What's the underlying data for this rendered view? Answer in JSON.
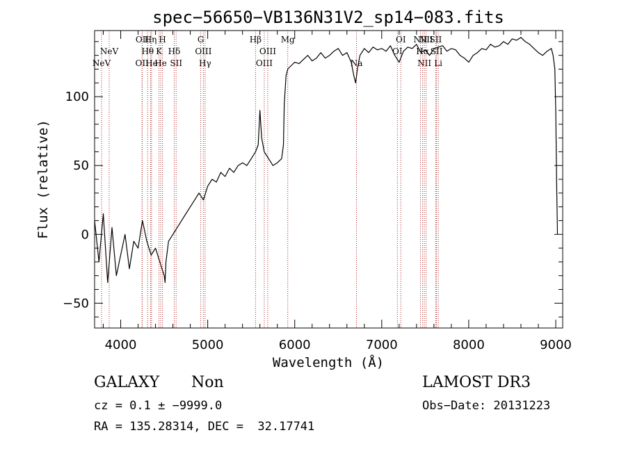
{
  "chart_data": {
    "type": "line",
    "title": "spec−56650−VB136N31V2_sp14−083.fits",
    "xlabel": "Wavelength (Å)",
    "ylabel": "Flux (relative)",
    "xlim": [
      3700,
      9080
    ],
    "ylim": [
      -68,
      148
    ],
    "x_ticks": [
      4000,
      5000,
      6000,
      7000,
      8000,
      9000
    ],
    "y_ticks": [
      -50,
      0,
      50,
      100
    ],
    "y_tick_labels": [
      "−50",
      "0",
      "50",
      "100"
    ],
    "series": [
      {
        "name": "spectrum",
        "color": "#000000",
        "x": [
          3700,
          3750,
          3800,
          3850,
          3900,
          3950,
          4000,
          4050,
          4100,
          4150,
          4200,
          4250,
          4300,
          4350,
          4400,
          4450,
          4500,
          4510,
          4520,
          4550,
          4600,
          4650,
          4700,
          4750,
          4800,
          4850,
          4900,
          4950,
          5000,
          5050,
          5100,
          5150,
          5200,
          5250,
          5300,
          5350,
          5400,
          5450,
          5500,
          5550,
          5580,
          5600,
          5620,
          5650,
          5700,
          5750,
          5800,
          5850,
          5870,
          5880,
          5890,
          5900,
          5920,
          5950,
          6000,
          6050,
          6100,
          6150,
          6200,
          6250,
          6300,
          6350,
          6400,
          6450,
          6500,
          6550,
          6600,
          6650,
          6680,
          6700,
          6720,
          6750,
          6800,
          6850,
          6900,
          6950,
          7000,
          7050,
          7100,
          7150,
          7200,
          7250,
          7300,
          7350,
          7400,
          7450,
          7500,
          7550,
          7600,
          7650,
          7700,
          7750,
          7800,
          7850,
          7900,
          7950,
          8000,
          8050,
          8100,
          8150,
          8200,
          8250,
          8300,
          8350,
          8400,
          8450,
          8500,
          8550,
          8600,
          8650,
          8700,
          8750,
          8800,
          8850,
          8900,
          8950,
          8970,
          8990,
          9000,
          9010,
          9020
        ],
        "y": [
          10,
          -20,
          15,
          -35,
          5,
          -30,
          -15,
          0,
          -25,
          -5,
          -10,
          10,
          -5,
          -15,
          -10,
          -20,
          -30,
          -35,
          -20,
          -5,
          0,
          5,
          10,
          15,
          20,
          25,
          30,
          25,
          35,
          40,
          38,
          45,
          42,
          48,
          45,
          50,
          52,
          50,
          55,
          60,
          65,
          90,
          70,
          60,
          55,
          50,
          52,
          55,
          65,
          95,
          105,
          115,
          120,
          122,
          125,
          124,
          127,
          130,
          126,
          128,
          132,
          128,
          130,
          133,
          135,
          130,
          132,
          125,
          115,
          110,
          120,
          130,
          135,
          132,
          136,
          134,
          135,
          133,
          137,
          130,
          125,
          133,
          136,
          135,
          138,
          132,
          134,
          130,
          135,
          136,
          137,
          133,
          135,
          134,
          130,
          128,
          125,
          130,
          132,
          135,
          134,
          138,
          136,
          137,
          140,
          138,
          142,
          141,
          143,
          140,
          138,
          135,
          132,
          130,
          133,
          135,
          130,
          120,
          90,
          40,
          0
        ]
      }
    ],
    "spectral_lines": [
      {
        "x": 3780,
        "label": "NeV",
        "row": 4
      },
      {
        "x": 3868,
        "label": "NeV",
        "row": 3
      },
      {
        "x": 4245,
        "label": "OII",
        "row": 4
      },
      {
        "x": 4248,
        "label": "OII",
        "row": 1
      },
      {
        "x": 4310,
        "label": "Hθ",
        "row": 3
      },
      {
        "x": 4344,
        "label": "Hη",
        "row": 1
      },
      {
        "x": 4355,
        "label": "He",
        "row": 4
      },
      {
        "x": 4440,
        "label": "K",
        "row": 3
      },
      {
        "x": 4460,
        "label": "He",
        "row": 4
      },
      {
        "x": 4480,
        "label": "H",
        "row": 1
      },
      {
        "x": 4615,
        "label": "Hδ",
        "row": 3
      },
      {
        "x": 4637,
        "label": "SII",
        "row": 4
      },
      {
        "x": 4920,
        "label": "G",
        "row": 1
      },
      {
        "x": 4950,
        "label": "OIII",
        "row": 3
      },
      {
        "x": 4970,
        "label": "Hγ",
        "row": 4
      },
      {
        "x": 5550,
        "label": "Hβ",
        "row": 1
      },
      {
        "x": 5650,
        "label": "OIII",
        "row": 4
      },
      {
        "x": 5690,
        "label": "OIII",
        "row": 3
      },
      {
        "x": 5920,
        "label": "Mg",
        "row": 1
      },
      {
        "x": 6710,
        "label": "Na",
        "row": 4
      },
      {
        "x": 7180,
        "label": "OI",
        "row": 3
      },
      {
        "x": 7220,
        "label": "OI",
        "row": 1
      },
      {
        "x": 7445,
        "label": "NII",
        "row": 1
      },
      {
        "x": 7470,
        "label": "Hα",
        "row": 3
      },
      {
        "x": 7490,
        "label": "NII",
        "row": 4
      },
      {
        "x": 7510,
        "label": "NII",
        "row": 1
      },
      {
        "x": 7620,
        "label": "SII",
        "row": 1
      },
      {
        "x": 7630,
        "label": "SII",
        "row": 3
      },
      {
        "x": 7650,
        "label": "Li",
        "row": 4
      }
    ]
  },
  "info": {
    "object_class": "GALAXY",
    "subclass": "Non",
    "redshift_text": "cz = 0.1 ± −9999.0",
    "coords_text": "RA = 135.28314, DEC =  32.17741",
    "survey": "LAMOST DR3",
    "obs_date": "Obs−Date: 20131223"
  }
}
